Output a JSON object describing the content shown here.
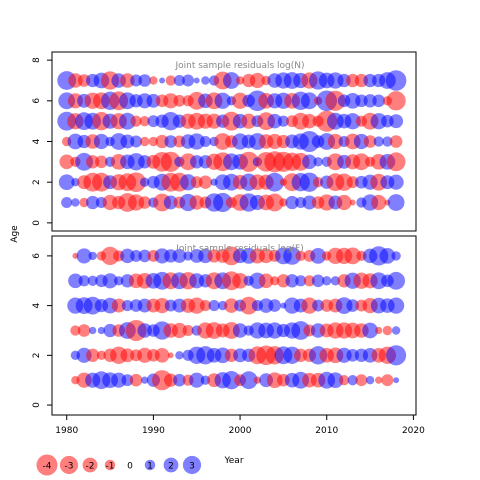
{
  "chart_data": [
    {
      "type": "scatter",
      "title": "Joint sample residuals log(N)",
      "ylabel": "Age",
      "ylim": [
        -0.4,
        8.4
      ],
      "yticks": [
        "0",
        "2",
        "4",
        "6",
        "8"
      ],
      "xlim": [
        1978.3,
        2020.3
      ],
      "ages": [
        1,
        2,
        3,
        4,
        5,
        6,
        7
      ],
      "years_from": 1980,
      "years_to": 2018,
      "residuals": [
        [
          0.7,
          0.4,
          -0.5,
          1.0,
          0.7,
          -1.3,
          -1.0,
          -2.0,
          -1.5,
          -0.9,
          0.6,
          -1.8,
          1.1,
          -0.8,
          1.7,
          -1.2,
          -0.8,
          1.9,
          2.1,
          -0.7,
          -1.6,
          1.9,
          1.3,
          -1.4,
          -1.8,
          -0.4,
          1.0,
          0.7,
          1.1,
          -0.9,
          -1.5,
          1.1,
          -1.3,
          -0.2,
          0.6,
          1.5,
          -1.3,
          -0.2,
          1.6
        ],
        [
          1.4,
          0.4,
          -1.1,
          -2.0,
          -2.0,
          1.1,
          -1.5,
          -1.8,
          -2.2,
          0.5,
          0.9,
          1.6,
          -2.0,
          -2.0,
          1.5,
          -0.8,
          -1.0,
          0.3,
          1.4,
          1.6,
          -1.2,
          1.7,
          -1.4,
          -1.3,
          2.0,
          -0.3,
          -1.8,
          1.9,
          2.1,
          -0.6,
          1.0,
          -1.8,
          -1.7,
          -0.8,
          0.9,
          1.3,
          -1.6,
          1.1,
          1.3
        ],
        [
          -1.2,
          -0.6,
          1.8,
          -1.0,
          -0.9,
          0.6,
          -1.4,
          1.2,
          1.7,
          1.0,
          -1.1,
          -2.2,
          -2.3,
          0.6,
          -1.6,
          1.0,
          1.0,
          -1.5,
          -2.0,
          1.6,
          1.4,
          -2.3,
          0.5,
          -2.2,
          -2.5,
          -2.3,
          -1.9,
          -1.8,
          1.2,
          0.5,
          0.6,
          -1.6,
          1.1,
          -1.3,
          -1.6,
          -0.6,
          -1.4,
          1.4,
          -2.0
        ],
        [
          -0.5,
          1.4,
          1.0,
          -1.2,
          1.3,
          0.5,
          1.6,
          1.1,
          0.8,
          -0.5,
          -0.5,
          -1.0,
          0.9,
          -0.8,
          1.2,
          1.5,
          0.7,
          0.5,
          -1.6,
          -0.9,
          1.5,
          1.1,
          1.6,
          -1.2,
          -1.3,
          -1.0,
          1.1,
          1.5,
          2.5,
          0.9,
          1.6,
          -1.3,
          0.7,
          -1.4,
          1.3,
          -0.9,
          0.6,
          0.6,
          -0.9
        ],
        [
          2.0,
          -1.5,
          1.8,
          1.6,
          -1.9,
          1.3,
          -1.5,
          1.6,
          -0.7,
          -0.6,
          0.8,
          1.0,
          1.9,
          1.0,
          -1.3,
          -1.6,
          -1.3,
          -1.3,
          1.0,
          -2.0,
          1.2,
          -1.3,
          0.8,
          -1.8,
          1.2,
          0.7,
          -0.8,
          -1.6,
          -1.2,
          -0.7,
          -2.5,
          1.6,
          1.2,
          1.5,
          -0.7,
          -1.6,
          1.5,
          0.9,
          1.1
        ],
        [
          1.6,
          -1.3,
          1.1,
          -1.5,
          -1.6,
          1.9,
          -2.0,
          1.6,
          1.0,
          1.3,
          1.1,
          -0.9,
          -1.3,
          -0.8,
          -0.7,
          -1.8,
          1.2,
          -1.6,
          1.5,
          0.5,
          -1.5,
          0.9,
          2.4,
          -1.4,
          1.3,
          1.5,
          -1.4,
          1.9,
          1.6,
          -0.4,
          2.4,
          -2.3,
          0.9,
          1.4,
          0.9,
          1.0,
          0.9,
          -0.5,
          -2.1
        ],
        [
          2.0,
          -1.2,
          -0.9,
          1.0,
          1.4,
          -1.9,
          1.2,
          -1.2,
          0.8,
          0.9,
          -0.4,
          0.2,
          -0.6,
          0.7,
          0.8,
          0.2,
          0.4,
          0.6,
          -1.8,
          1.6,
          -0.4,
          -1.0,
          -1.3,
          -0.5,
          1.2,
          1.5,
          1.6,
          1.3,
          -1.5,
          1.9,
          1.4,
          1.5,
          1.0,
          -1.0,
          -1.0,
          1.0,
          1.0,
          1.6,
          2.4
        ]
      ]
    },
    {
      "type": "scatter",
      "title": "Joint sample residuals log(F)",
      "xlabel": "Year",
      "ylim": [
        -0.4,
        6.8
      ],
      "yticks": [
        "0",
        "2",
        "4",
        "6"
      ],
      "xlim": [
        1978.3,
        2020.3
      ],
      "xticks": [
        1980,
        1990,
        2000,
        2010,
        2020
      ],
      "ages": [
        1,
        2,
        3,
        4,
        5,
        6
      ],
      "years_from": 1981,
      "years_to": 2018,
      "residuals": [
        [
          -0.4,
          -1.3,
          1.3,
          1.8,
          1.4,
          1.3,
          0.8,
          -0.9,
          0.3,
          1.0,
          -2.3,
          -1.0,
          0.9,
          -0.7,
          1.3,
          0.5,
          -1.1,
          1.5,
          1.9,
          -0.8,
          1.8,
          -0.3,
          1.1,
          -1.4,
          -0.9,
          1.2,
          1.6,
          -1.2,
          -1.2,
          1.6,
          1.4,
          -0.6,
          0.6,
          -0.8,
          0.4,
          -0.3,
          -0.8,
          0.2
        ],
        [
          0.5,
          1.3,
          -1.0,
          -0.5,
          -1.0,
          -1.7,
          -1.1,
          -0.8,
          -1.3,
          -0.9,
          -1.2,
          -0.2,
          0.4,
          0.7,
          1.7,
          1.9,
          1.2,
          1.4,
          -1.0,
          1.1,
          1.0,
          -1.8,
          -2.2,
          -1.9,
          1.8,
          1.7,
          -1.0,
          -1.0,
          1.9,
          -1.2,
          -1.4,
          1.3,
          0.9,
          1.0,
          1.2,
          -1.2,
          -1.7,
          2.3
        ],
        [
          -0.6,
          -0.9,
          0.3,
          0.3,
          1.0,
          -0.9,
          1.6,
          -2.5,
          1.2,
          0.9,
          1.9,
          -1.2,
          -1.3,
          -0.7,
          0.6,
          -1.5,
          -1.6,
          -1.1,
          -1.6,
          1.2,
          0.6,
          1.5,
          1.4,
          1.5,
          1.0,
          1.5,
          2.0,
          -0.8,
          1.2,
          -1.1,
          -1.5,
          -1.5,
          -1.4,
          -1.2,
          1.4,
          -0.3,
          -0.5,
          0.4
        ],
        [
          1.5,
          1.6,
          1.8,
          1.0,
          1.4,
          -1.1,
          0.7,
          0.9,
          1.1,
          -1.1,
          -1.3,
          0.8,
          1.1,
          -1.2,
          -1.5,
          -0.7,
          0.7,
          0.5,
          -1.2,
          0.8,
          -1.8,
          0.7,
          1.2,
          0.9,
          0.2,
          1.5,
          1.1,
          -1.5,
          0.8,
          -0.9,
          -1.1,
          1.6,
          0.9,
          -0.8,
          -1.3,
          1.4,
          1.2,
          1.5
        ],
        [
          1.2,
          0.7,
          0.6,
          0.9,
          1.3,
          0.5,
          1.0,
          -1.2,
          -1.4,
          1.4,
          1.8,
          -1.6,
          1.6,
          -1.7,
          1.3,
          1.0,
          -1.6,
          1.6,
          -2.0,
          -1.4,
          0.6,
          1.5,
          -1.2,
          -0.5,
          -1.0,
          1.0,
          0.7,
          -0.7,
          0.9,
          0.5,
          0.5,
          -1.0,
          1.5,
          -1.5,
          -1.3,
          1.6,
          0.9,
          1.8
        ],
        [
          -0.2,
          1.3,
          0.4,
          -0.5,
          -1.9,
          -0.7,
          1.2,
          0.8,
          0.9,
          -0.8,
          1.3,
          1.0,
          1.1,
          0.5,
          1.1,
          1.2,
          -1.0,
          -1.1,
          -2.0,
          1.2,
          1.4,
          -1.3,
          -1.2,
          -0.8,
          1.6,
          1.8,
          -0.6,
          -0.8,
          1.4,
          -0.5,
          -1.5,
          -1.5,
          -1.6,
          -0.6,
          1.2,
          2.1,
          1.4,
          0.5
        ]
      ]
    }
  ],
  "legend": [
    "-4",
    "-3",
    "-2",
    "-1",
    "0",
    "1",
    "2",
    "3"
  ],
  "colors": {
    "positive": "#0000ff",
    "negative": "#ff0000",
    "frame": "#000000",
    "title": "#888888"
  }
}
